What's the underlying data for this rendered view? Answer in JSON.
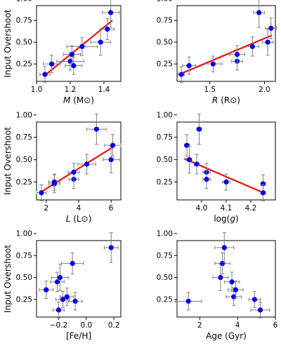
{
  "figure": {
    "background": "#ffffff",
    "point_color": "#0000ee",
    "fit_color": "#ee1111",
    "errorbar_color": "#808080"
  },
  "chart_data": [
    {
      "type": "scatter",
      "xlabel": "M (M⊙)",
      "xlabel_parts": {
        "var": "M",
        "unit": "(M⊙)"
      },
      "ylabel": "Input Overshoot",
      "xlim": [
        1.0,
        1.5
      ],
      "ylim": [
        0.05,
        0.92
      ],
      "xticks": [
        1.0,
        1.2,
        1.4
      ],
      "xtick_labels": [
        "1.0",
        "1.2",
        "1.4"
      ],
      "yticks": [
        0.25,
        0.5,
        0.75,
        1.0
      ],
      "ytick_labels": [
        "0.25",
        "0.50",
        "0.75",
        "1.00"
      ],
      "grid": false,
      "points": [
        {
          "x": 1.05,
          "y": 0.13,
          "xerr": 0.03,
          "yerr": 0.09
        },
        {
          "x": 1.09,
          "y": 0.25,
          "xerr": 0.05,
          "yerr": 0.1
        },
        {
          "x": 1.2,
          "y": 0.28,
          "xerr": 0.08,
          "yerr": 0.1
        },
        {
          "x": 1.21,
          "y": 0.36,
          "xerr": 0.05,
          "yerr": 0.1
        },
        {
          "x": 1.22,
          "y": 0.23,
          "xerr": 0.05,
          "yerr": 0.1
        },
        {
          "x": 1.27,
          "y": 0.45,
          "xerr": 0.09,
          "yerr": 0.1
        },
        {
          "x": 1.38,
          "y": 0.5,
          "xerr": 0.06,
          "yerr": 0.15
        },
        {
          "x": 1.42,
          "y": 0.65,
          "xerr": 0.04,
          "yerr": 0.12
        },
        {
          "x": 1.44,
          "y": 0.84,
          "xerr": 0.05,
          "yerr": 0.17
        }
      ],
      "fit_line": {
        "x": [
          1.05,
          1.45
        ],
        "y": [
          0.12,
          0.75
        ]
      }
    },
    {
      "type": "scatter",
      "xlabel": "R (R⊙)",
      "xlabel_parts": {
        "var": "R",
        "unit": "(R⊙)"
      },
      "ylabel": "",
      "xlim": [
        1.2,
        2.1
      ],
      "ylim": [
        0.05,
        0.92
      ],
      "xticks": [
        1.5,
        2.0
      ],
      "xtick_labels": [
        "1.5",
        "2.0"
      ],
      "yticks": [
        0.25,
        0.5,
        0.75,
        1.0
      ],
      "ytick_labels": [
        "0.25",
        "0.50",
        "0.75",
        "1.00"
      ],
      "grid": false,
      "points": [
        {
          "x": 1.24,
          "y": 0.13,
          "xerr": 0.03,
          "yerr": 0.09
        },
        {
          "x": 1.31,
          "y": 0.23,
          "xerr": 0.06,
          "yerr": 0.1
        },
        {
          "x": 1.53,
          "y": 0.25,
          "xerr": 0.08,
          "yerr": 0.09
        },
        {
          "x": 1.75,
          "y": 0.28,
          "xerr": 0.05,
          "yerr": 0.1
        },
        {
          "x": 1.75,
          "y": 0.36,
          "xerr": 0.07,
          "yerr": 0.1
        },
        {
          "x": 1.89,
          "y": 0.45,
          "xerr": 0.06,
          "yerr": 0.11
        },
        {
          "x": 1.95,
          "y": 0.84,
          "xerr": 0.05,
          "yerr": 0.17
        },
        {
          "x": 2.03,
          "y": 0.5,
          "xerr": 0.05,
          "yerr": 0.15
        },
        {
          "x": 2.06,
          "y": 0.66,
          "xerr": 0.05,
          "yerr": 0.12
        }
      ],
      "fit_line": {
        "x": [
          1.22,
          2.07
        ],
        "y": [
          0.13,
          0.58
        ]
      }
    },
    {
      "type": "scatter",
      "xlabel": "L (L⊙)",
      "xlabel_parts": {
        "var": "L",
        "unit": "(L⊙)"
      },
      "ylabel": "Input Overshoot",
      "xlim": [
        1.4,
        6.6
      ],
      "ylim": [
        0.05,
        0.92
      ],
      "xticks": [
        2,
        4,
        6
      ],
      "xtick_labels": [
        "2",
        "4",
        "6"
      ],
      "yticks": [
        0.25,
        0.5,
        0.75,
        1.0
      ],
      "ytick_labels": [
        "0.25",
        "0.50",
        "0.75",
        "1.00"
      ],
      "grid": false,
      "points": [
        {
          "x": 1.7,
          "y": 0.13,
          "xerr": 0.3,
          "yerr": 0.09
        },
        {
          "x": 2.5,
          "y": 0.23,
          "xerr": 0.35,
          "yerr": 0.1
        },
        {
          "x": 2.5,
          "y": 0.25,
          "xerr": 0.35,
          "yerr": 0.09
        },
        {
          "x": 3.7,
          "y": 0.28,
          "xerr": 0.3,
          "yerr": 0.1
        },
        {
          "x": 3.7,
          "y": 0.36,
          "xerr": 0.35,
          "yerr": 0.1
        },
        {
          "x": 4.5,
          "y": 0.45,
          "xerr": 0.55,
          "yerr": 0.11
        },
        {
          "x": 5.1,
          "y": 0.84,
          "xerr": 0.6,
          "yerr": 0.17
        },
        {
          "x": 6.0,
          "y": 0.5,
          "xerr": 0.5,
          "yerr": 0.15
        },
        {
          "x": 6.1,
          "y": 0.66,
          "xerr": 0.5,
          "yerr": 0.12
        }
      ],
      "fit_line": {
        "x": [
          1.6,
          6.2
        ],
        "y": [
          0.13,
          0.65
        ]
      }
    },
    {
      "type": "scatter",
      "xlabel": "log(g)",
      "xlabel_parts": {
        "var": "g",
        "prefix": "log(",
        "suffix": ")"
      },
      "ylabel": "",
      "xlim": [
        3.9,
        4.3
      ],
      "ylim": [
        0.05,
        0.92
      ],
      "xticks": [
        4.0,
        4.1,
        4.2
      ],
      "xtick_labels": [
        "4.0",
        "4.1",
        "4.2"
      ],
      "yticks": [
        0.25,
        0.5,
        0.75,
        1.0
      ],
      "ytick_labels": [
        "0.25",
        "0.50",
        "0.75",
        "1.00"
      ],
      "grid": false,
      "points": [
        {
          "x": 3.94,
          "y": 0.66,
          "xerr": 0.01,
          "yerr": 0.12
        },
        {
          "x": 3.95,
          "y": 0.5,
          "xerr": 0.01,
          "yerr": 0.15
        },
        {
          "x": 3.98,
          "y": 0.45,
          "xerr": 0.01,
          "yerr": 0.11
        },
        {
          "x": 3.99,
          "y": 0.84,
          "xerr": 0.01,
          "yerr": 0.17
        },
        {
          "x": 4.02,
          "y": 0.36,
          "xerr": 0.015,
          "yerr": 0.1
        },
        {
          "x": 4.02,
          "y": 0.28,
          "xerr": 0.015,
          "yerr": 0.1
        },
        {
          "x": 4.1,
          "y": 0.25,
          "xerr": 0.015,
          "yerr": 0.09
        },
        {
          "x": 4.25,
          "y": 0.23,
          "xerr": 0.01,
          "yerr": 0.1
        },
        {
          "x": 4.25,
          "y": 0.13,
          "xerr": 0.01,
          "yerr": 0.09
        }
      ],
      "fit_line": {
        "x": [
          3.93,
          4.26
        ],
        "y": [
          0.51,
          0.12
        ]
      }
    },
    {
      "type": "scatter",
      "xlabel": "[Fe/H]",
      "ylabel": "Input Overshoot",
      "xlim": [
        -0.36,
        0.25
      ],
      "ylim": [
        0.05,
        0.92
      ],
      "xticks": [
        -0.2,
        0.0,
        0.2
      ],
      "xtick_labels": [
        "−0.2",
        "0.0",
        "0.2"
      ],
      "yticks": [
        0.25,
        0.5,
        0.75,
        1.0
      ],
      "ytick_labels": [
        "0.25",
        "0.50",
        "0.75",
        "1.00"
      ],
      "grid": false,
      "points": [
        {
          "x": -0.29,
          "y": 0.36,
          "xerr": 0.05,
          "yerr": 0.1
        },
        {
          "x": -0.21,
          "y": 0.45,
          "xerr": 0.05,
          "yerr": 0.11
        },
        {
          "x": -0.19,
          "y": 0.5,
          "xerr": 0.06,
          "yerr": 0.15
        },
        {
          "x": -0.2,
          "y": 0.13,
          "xerr": 0.04,
          "yerr": 0.09
        },
        {
          "x": -0.17,
          "y": 0.25,
          "xerr": 0.05,
          "yerr": 0.09
        },
        {
          "x": -0.14,
          "y": 0.28,
          "xerr": 0.05,
          "yerr": 0.1
        },
        {
          "x": -0.1,
          "y": 0.66,
          "xerr": 0.08,
          "yerr": 0.12
        },
        {
          "x": -0.08,
          "y": 0.23,
          "xerr": 0.05,
          "yerr": 0.1
        },
        {
          "x": 0.18,
          "y": 0.84,
          "xerr": 0.05,
          "yerr": 0.17
        }
      ]
    },
    {
      "type": "scatter",
      "xlabel": "Age (Gyr)",
      "ylabel": "",
      "xlim": [
        0.8,
        6.0
      ],
      "ylim": [
        0.05,
        0.92
      ],
      "xticks": [
        2,
        4,
        6
      ],
      "xtick_labels": [
        "2",
        "4",
        "6"
      ],
      "yticks": [
        0.25,
        0.5,
        0.75,
        1.0
      ],
      "ytick_labels": [
        "0.25",
        "0.50",
        "0.75",
        "1.00"
      ],
      "grid": false,
      "points": [
        {
          "x": 1.4,
          "y": 0.23,
          "xerr": 0.7,
          "yerr": 0.1
        },
        {
          "x": 3.1,
          "y": 0.5,
          "xerr": 0.4,
          "yerr": 0.15
        },
        {
          "x": 3.2,
          "y": 0.66,
          "xerr": 0.4,
          "yerr": 0.12
        },
        {
          "x": 3.3,
          "y": 0.84,
          "xerr": 0.5,
          "yerr": 0.17
        },
        {
          "x": 3.7,
          "y": 0.45,
          "xerr": 0.4,
          "yerr": 0.11
        },
        {
          "x": 3.8,
          "y": 0.28,
          "xerr": 0.4,
          "yerr": 0.1
        },
        {
          "x": 3.9,
          "y": 0.36,
          "xerr": 0.4,
          "yerr": 0.1
        },
        {
          "x": 4.9,
          "y": 0.25,
          "xerr": 0.3,
          "yerr": 0.09
        },
        {
          "x": 5.2,
          "y": 0.13,
          "xerr": 0.5,
          "yerr": 0.09
        }
      ]
    }
  ]
}
